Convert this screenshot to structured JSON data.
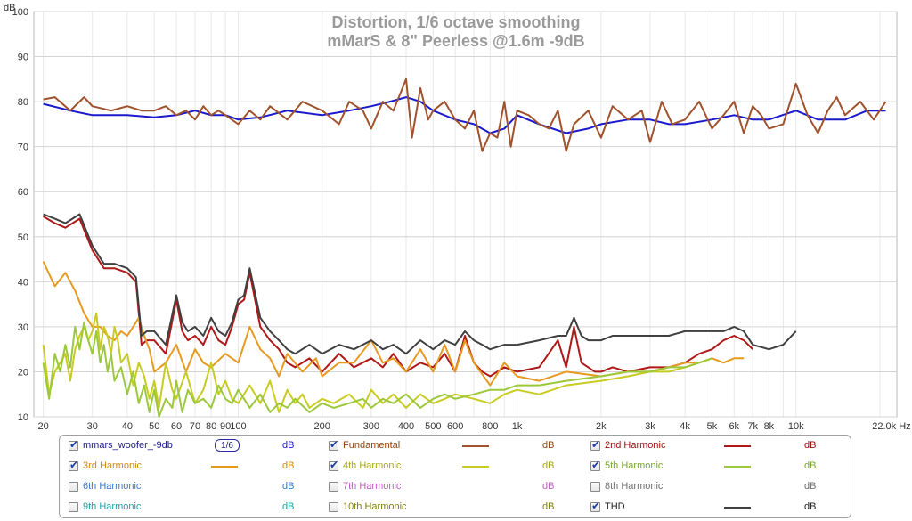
{
  "chart_data": {
    "type": "line",
    "title": "Distortion, 1/6 octave smoothing",
    "subtitle": "mMarS & 8\" Peerless @1.6m -9dB",
    "y_unit": "dB",
    "x_unit": "Hz",
    "x_scale": "log",
    "xlim": [
      18.5,
      23000
    ],
    "ylim": [
      10,
      100
    ],
    "y_ticks": [
      "10",
      "20",
      "30",
      "40",
      "50",
      "60",
      "70",
      "80",
      "90",
      "100"
    ],
    "x_ticks": [
      {
        "v": 20,
        "t": "20"
      },
      {
        "v": 30,
        "t": "30"
      },
      {
        "v": 40,
        "t": "40"
      },
      {
        "v": 50,
        "t": "50"
      },
      {
        "v": 60,
        "t": "60"
      },
      {
        "v": 70,
        "t": "70"
      },
      {
        "v": 80,
        "t": "80"
      },
      {
        "v": 90,
        "t": "90"
      },
      {
        "v": 100,
        "t": "100"
      },
      {
        "v": 200,
        "t": "200"
      },
      {
        "v": 300,
        "t": "300"
      },
      {
        "v": 400,
        "t": "400"
      },
      {
        "v": 500,
        "t": "500"
      },
      {
        "v": 600,
        "t": "600"
      },
      {
        "v": 800,
        "t": "800"
      },
      {
        "v": 1000,
        "t": "1k"
      },
      {
        "v": 2000,
        "t": "2k"
      },
      {
        "v": 3000,
        "t": "3k"
      },
      {
        "v": 4000,
        "t": "4k"
      },
      {
        "v": 5000,
        "t": "5k"
      },
      {
        "v": 6000,
        "t": "6k"
      },
      {
        "v": 7000,
        "t": "7k"
      },
      {
        "v": 8000,
        "t": "8k"
      },
      {
        "v": 10000,
        "t": "10k"
      },
      {
        "v": 22000,
        "t": "22.0k Hz"
      }
    ],
    "grid": true,
    "legend_position": "bottom",
    "series": [
      {
        "name": "mmars_woofer_-9db",
        "color": "#1a1acc",
        "width": 2,
        "x": [
          20,
          25,
          30,
          35,
          40,
          50,
          60,
          70,
          80,
          90,
          100,
          120,
          150,
          200,
          250,
          300,
          350,
          400,
          450,
          500,
          600,
          700,
          800,
          900,
          1000,
          1200,
          1500,
          1800,
          2000,
          2500,
          3000,
          3500,
          4000,
          5000,
          6000,
          7000,
          8000,
          10000,
          12000,
          15000,
          18000,
          21000
        ],
        "y": [
          79.5,
          78,
          77,
          77,
          77,
          76.5,
          77,
          78,
          77,
          77,
          76,
          76.5,
          78,
          77,
          78,
          79,
          80,
          81,
          80,
          78,
          76,
          75,
          73,
          74,
          77,
          75,
          73,
          74,
          75,
          76,
          76,
          75,
          75,
          76,
          77,
          76,
          76,
          78,
          76,
          76,
          78,
          78
        ]
      },
      {
        "name": "Fundamental",
        "color": "#a0522d",
        "width": 2,
        "x": [
          20,
          22,
          25,
          28,
          30,
          35,
          40,
          45,
          50,
          55,
          60,
          65,
          70,
          75,
          80,
          85,
          90,
          100,
          110,
          120,
          130,
          150,
          170,
          200,
          230,
          250,
          280,
          300,
          330,
          360,
          400,
          420,
          450,
          480,
          500,
          550,
          600,
          650,
          700,
          750,
          800,
          850,
          900,
          950,
          1000,
          1100,
          1200,
          1300,
          1400,
          1500,
          1600,
          1800,
          2000,
          2200,
          2500,
          2800,
          3000,
          3300,
          3600,
          4000,
          4500,
          5000,
          5500,
          6000,
          6500,
          7000,
          7500,
          8000,
          9000,
          10000,
          11000,
          12000,
          13000,
          14000,
          15000,
          17000,
          19000,
          21000
        ],
        "y": [
          80.5,
          81,
          78,
          81,
          79,
          78,
          79,
          78,
          78,
          79,
          77,
          78,
          76,
          79,
          77,
          78,
          77,
          75,
          78,
          76,
          79,
          76,
          80,
          78,
          75,
          80,
          78,
          74,
          80,
          78,
          85,
          72,
          83,
          76,
          78,
          80,
          76,
          74,
          78,
          69,
          73,
          72,
          80,
          70,
          78,
          77,
          75,
          74,
          78,
          69,
          75,
          78,
          72,
          79,
          76,
          78,
          71,
          80,
          75,
          76,
          80,
          74,
          77,
          80,
          73,
          79,
          77,
          74,
          75,
          84,
          77,
          73,
          78,
          81,
          77,
          80,
          76,
          80
        ]
      },
      {
        "name": "2nd Harmonic",
        "color": "#b01818",
        "width": 2,
        "x": [
          20,
          22,
          24,
          27,
          30,
          33,
          36,
          40,
          43,
          45,
          47,
          50,
          55,
          60,
          63,
          66,
          70,
          75,
          80,
          85,
          90,
          95,
          100,
          105,
          110,
          120,
          130,
          140,
          150,
          160,
          180,
          200,
          230,
          260,
          300,
          330,
          360,
          400,
          450,
          500,
          550,
          600,
          650,
          700,
          750,
          800,
          900,
          1000,
          1200,
          1400,
          1500,
          1600,
          1700,
          1800,
          1900,
          2000,
          2200,
          2500,
          3000,
          3500,
          4000,
          4500,
          5000,
          5500,
          6000,
          6500,
          7000
        ],
        "y": [
          54.5,
          53,
          52,
          54,
          47,
          43,
          43,
          42,
          40,
          26,
          27,
          27,
          24,
          36,
          29,
          27,
          28,
          26,
          30,
          27,
          26,
          30,
          35,
          36,
          42,
          30,
          27,
          25,
          22,
          21,
          23,
          20,
          24,
          21,
          23,
          21,
          24,
          20,
          22,
          21,
          24,
          20,
          28,
          22,
          20,
          19,
          21,
          20,
          21,
          27,
          21,
          30,
          22,
          21,
          20,
          20,
          21,
          20,
          21,
          21,
          22,
          24,
          25,
          27,
          28,
          27,
          25
        ]
      },
      {
        "name": "3rd Harmonic",
        "color": "#e69a20",
        "width": 2,
        "x": [
          20,
          22,
          24,
          26,
          28,
          30,
          32,
          34,
          36,
          38,
          40,
          42,
          44,
          46,
          48,
          50,
          55,
          60,
          65,
          70,
          75,
          80,
          90,
          100,
          110,
          120,
          130,
          140,
          150,
          170,
          190,
          200,
          230,
          260,
          300,
          330,
          360,
          400,
          450,
          500,
          550,
          600,
          650,
          700,
          800,
          900,
          1000,
          1200,
          1500,
          2000,
          2500,
          3000,
          3500,
          4000,
          4500,
          5000,
          5500,
          6000,
          6500
        ],
        "y": [
          44.5,
          39,
          42,
          38,
          33,
          30,
          30,
          28,
          27,
          29,
          28,
          30,
          32,
          28,
          25,
          20,
          22,
          26,
          20,
          25,
          22,
          21,
          24,
          22,
          30,
          25,
          23,
          19,
          24,
          20,
          23,
          19,
          22,
          22,
          27,
          22,
          23,
          20,
          25,
          20,
          26,
          20,
          27,
          22,
          17,
          22,
          19,
          18,
          20,
          19,
          20,
          20,
          21,
          22,
          22,
          23,
          22,
          23,
          23
        ]
      },
      {
        "name": "4th Harmonic",
        "color": "#c8cc22",
        "width": 2,
        "x": [
          20,
          21,
          22,
          23,
          24,
          25,
          26,
          27,
          28,
          29,
          30,
          31,
          32,
          33,
          34,
          35,
          36,
          37,
          38,
          40,
          42,
          44,
          46,
          48,
          50,
          52,
          55,
          58,
          60,
          65,
          70,
          75,
          80,
          85,
          90,
          95,
          100,
          110,
          120,
          130,
          140,
          150,
          160,
          170,
          180,
          200,
          220,
          250,
          280,
          300,
          330,
          360,
          400,
          450,
          500,
          550,
          600,
          700,
          800,
          900,
          1000,
          1200,
          1500,
          2000,
          2500,
          3000,
          3500,
          4000,
          4500,
          5000
        ],
        "y": [
          26,
          15,
          20,
          22,
          24,
          18,
          25,
          28,
          30,
          27,
          29,
          33,
          25,
          30,
          28,
          24,
          30,
          27,
          22,
          24,
          17,
          22,
          19,
          14,
          18,
          12,
          22,
          16,
          14,
          20,
          13,
          16,
          22,
          15,
          18,
          14,
          13,
          17,
          13,
          18,
          11,
          16,
          13,
          15,
          12,
          14,
          13,
          15,
          12,
          16,
          13,
          15,
          12,
          15,
          13,
          14,
          15,
          14,
          13,
          15,
          16,
          15,
          17,
          18,
          19,
          20,
          20,
          21,
          22,
          23
        ]
      },
      {
        "name": "5th Harmonic",
        "color": "#9cc83c",
        "width": 2,
        "x": [
          20,
          21,
          22,
          23,
          24,
          25,
          26,
          27,
          28,
          29,
          30,
          31,
          32,
          33,
          34,
          35,
          36,
          38,
          40,
          42,
          44,
          46,
          48,
          50,
          52,
          55,
          58,
          60,
          63,
          66,
          70,
          75,
          80,
          85,
          90,
          95,
          100,
          110,
          120,
          130,
          140,
          150,
          160,
          180,
          200,
          220,
          250,
          280,
          300,
          330,
          360,
          400,
          450,
          500,
          550,
          600,
          700,
          800,
          900,
          1000,
          1200,
          1500,
          2000,
          2500,
          3000,
          3500,
          4000,
          4500,
          5000
        ],
        "y": [
          22,
          14,
          24,
          20,
          26,
          21,
          30,
          25,
          31,
          27,
          24,
          29,
          22,
          26,
          20,
          24,
          18,
          21,
          15,
          20,
          13,
          17,
          11,
          16,
          10,
          14,
          12,
          18,
          11,
          16,
          13,
          14,
          12,
          17,
          14,
          13,
          16,
          12,
          15,
          11,
          13,
          12,
          14,
          11,
          13,
          12,
          13,
          14,
          12,
          14,
          13,
          15,
          12,
          14,
          15,
          14,
          15,
          16,
          16,
          17,
          17,
          18,
          19,
          20,
          20,
          21,
          21,
          22,
          23
        ]
      },
      {
        "name": "THD",
        "color": "#404040",
        "width": 2,
        "x": [
          20,
          22,
          24,
          27,
          30,
          33,
          36,
          40,
          43,
          45,
          47,
          50,
          55,
          60,
          63,
          66,
          70,
          75,
          80,
          85,
          90,
          95,
          100,
          105,
          110,
          120,
          130,
          140,
          150,
          160,
          180,
          200,
          230,
          260,
          300,
          330,
          360,
          400,
          450,
          500,
          550,
          600,
          650,
          700,
          750,
          800,
          900,
          1000,
          1200,
          1400,
          1500,
          1600,
          1700,
          1800,
          1900,
          2000,
          2200,
          2500,
          3000,
          3500,
          4000,
          4500,
          5000,
          5500,
          6000,
          6500,
          7000,
          8000,
          9000,
          10000
        ],
        "y": [
          55,
          54,
          53,
          55,
          48,
          44,
          44,
          43,
          41,
          28,
          29,
          29,
          26,
          37,
          31,
          29,
          30,
          28,
          32,
          29,
          28,
          31,
          36,
          37,
          43,
          32,
          29,
          27,
          25,
          24,
          26,
          24,
          26,
          25,
          27,
          25,
          26,
          24,
          27,
          25,
          27,
          26,
          29,
          27,
          26,
          25,
          26,
          26,
          27,
          28,
          28,
          32,
          28,
          27,
          27,
          27,
          28,
          28,
          28,
          28,
          29,
          29,
          29,
          29,
          30,
          29,
          26,
          25,
          26,
          29
        ]
      }
    ]
  },
  "legend": {
    "smoothing": "1/6",
    "items": [
      {
        "label": "mmars_woofer_-9db",
        "checked": true,
        "text_color": "#1a1a8a",
        "swatch": "",
        "db": "dB",
        "db_color": "#1a1acc"
      },
      {
        "label": "Fundamental",
        "checked": true,
        "text_color": "#8b4513",
        "swatch": "#a0522d",
        "db": "dB",
        "db_color": "#8b4513"
      },
      {
        "label": "2nd Harmonic",
        "checked": true,
        "text_color": "#a01010",
        "swatch": "#b01818",
        "db": "dB",
        "db_color": "#a01010"
      },
      {
        "label": "3rd Harmonic",
        "checked": true,
        "text_color": "#d48a10",
        "swatch": "#e69a20",
        "db": "dB",
        "db_color": "#d48a10"
      },
      {
        "label": "4th Harmonic",
        "checked": true,
        "text_color": "#a8aa10",
        "swatch": "#c8cc22",
        "db": "dB",
        "db_color": "#a8aa10"
      },
      {
        "label": "5th Harmonic",
        "checked": true,
        "text_color": "#78a828",
        "swatch": "#9cc83c",
        "db": "dB",
        "db_color": "#78a828"
      },
      {
        "label": "6th Harmonic",
        "checked": false,
        "text_color": "#3a7ac8",
        "swatch": "",
        "db": "dB",
        "db_color": "#3a7ac8"
      },
      {
        "label": "7th Harmonic",
        "checked": false,
        "text_color": "#c060c0",
        "swatch": "",
        "db": "dB",
        "db_color": "#c060c0"
      },
      {
        "label": "8th Harmonic",
        "checked": false,
        "text_color": "#707070",
        "swatch": "",
        "db": "dB",
        "db_color": "#707070"
      },
      {
        "label": "9th Harmonic",
        "checked": false,
        "text_color": "#20a0a8",
        "swatch": "",
        "db": "dB",
        "db_color": "#20a0a8"
      },
      {
        "label": "10th Harmonic",
        "checked": false,
        "text_color": "#808010",
        "swatch": "",
        "db": "dB",
        "db_color": "#808010"
      },
      {
        "label": "THD",
        "checked": true,
        "text_color": "#202020",
        "swatch": "#404040",
        "db": "dB",
        "db_color": "#202020"
      }
    ]
  }
}
